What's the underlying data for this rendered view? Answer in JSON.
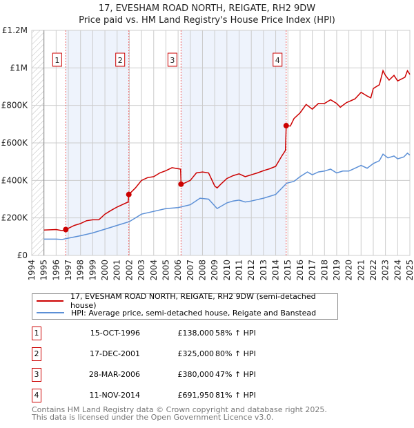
{
  "chart_data": {
    "type": "line",
    "title": "17, EVESHAM ROAD NORTH, REIGATE, RH2 9DW",
    "subtitle": "Price paid vs. HM Land Registry's House Price Index (HPI)",
    "xlim": [
      1994,
      2025
    ],
    "ylim": [
      0,
      1200000
    ],
    "y_ticks": [
      {
        "v": 0,
        "label": "£0"
      },
      {
        "v": 200000,
        "label": "£200K"
      },
      {
        "v": 400000,
        "label": "£400K"
      },
      {
        "v": 600000,
        "label": "£600K"
      },
      {
        "v": 800000,
        "label": "£800K"
      },
      {
        "v": 1000000,
        "label": "£1M"
      },
      {
        "v": 1200000,
        "label": "£1.2M"
      }
    ],
    "x_ticks": [
      "1994",
      "1995",
      "1996",
      "1997",
      "1998",
      "1999",
      "2000",
      "2001",
      "2002",
      "2003",
      "2004",
      "2005",
      "2006",
      "2007",
      "2008",
      "2009",
      "2010",
      "2011",
      "2012",
      "2013",
      "2014",
      "2015",
      "2016",
      "2017",
      "2018",
      "2019",
      "2020",
      "2021",
      "2022",
      "2023",
      "2024",
      "2025"
    ],
    "grid": true,
    "colors": {
      "property": "#cc0000",
      "hpi": "#5b8fd6",
      "shade": "#eef3fc"
    },
    "series": [
      {
        "name": "17, EVESHAM ROAD NORTH, REIGATE, RH2 9DW (semi-detached house)",
        "points": [
          [
            1995,
            135
          ],
          [
            1996,
            138
          ],
          [
            1996.5,
            132
          ],
          [
            1996.79,
            138
          ],
          [
            1997.5,
            160
          ],
          [
            1998,
            170
          ],
          [
            1998.5,
            185
          ],
          [
            1999,
            190
          ],
          [
            1999.5,
            190
          ],
          [
            2000,
            220
          ],
          [
            2000.5,
            240
          ],
          [
            2001,
            258
          ],
          [
            2001.9,
            285
          ],
          [
            2001.96,
            325
          ],
          [
            2002.5,
            360
          ],
          [
            2003,
            400
          ],
          [
            2003.5,
            415
          ],
          [
            2004,
            420
          ],
          [
            2004.5,
            440
          ],
          [
            2005,
            452
          ],
          [
            2005.5,
            468
          ],
          [
            2006.2,
            460
          ],
          [
            2006.24,
            380
          ],
          [
            2006.5,
            385
          ],
          [
            2007,
            400
          ],
          [
            2007.5,
            440
          ],
          [
            2008,
            445
          ],
          [
            2008.5,
            440
          ],
          [
            2009,
            370
          ],
          [
            2009.2,
            360
          ],
          [
            2009.5,
            380
          ],
          [
            2010,
            410
          ],
          [
            2010.5,
            425
          ],
          [
            2011,
            435
          ],
          [
            2011.5,
            420
          ],
          [
            2012,
            430
          ],
          [
            2012.5,
            440
          ],
          [
            2013,
            452
          ],
          [
            2013.5,
            462
          ],
          [
            2014,
            475
          ],
          [
            2014.5,
            530
          ],
          [
            2014.8,
            560
          ],
          [
            2014.86,
            692
          ],
          [
            2015.2,
            690
          ],
          [
            2015.5,
            730
          ],
          [
            2016,
            760
          ],
          [
            2016.5,
            805
          ],
          [
            2017,
            780
          ],
          [
            2017.5,
            810
          ],
          [
            2018,
            810
          ],
          [
            2018.5,
            830
          ],
          [
            2019,
            810
          ],
          [
            2019.3,
            790
          ],
          [
            2019.8,
            815
          ],
          [
            2020,
            820
          ],
          [
            2020.5,
            835
          ],
          [
            2021,
            870
          ],
          [
            2021.5,
            850
          ],
          [
            2021.8,
            840
          ],
          [
            2022,
            890
          ],
          [
            2022.5,
            910
          ],
          [
            2022.8,
            985
          ],
          [
            2023,
            960
          ],
          [
            2023.3,
            935
          ],
          [
            2023.7,
            960
          ],
          [
            2024,
            930
          ],
          [
            2024.3,
            940
          ],
          [
            2024.6,
            950
          ],
          [
            2024.8,
            985
          ],
          [
            2025,
            965
          ]
        ]
      },
      {
        "name": "HPI: Average price, semi-detached house, Reigate and Banstead",
        "points": [
          [
            1995,
            87
          ],
          [
            1996,
            87
          ],
          [
            1996.5,
            85
          ],
          [
            1997,
            92
          ],
          [
            1998,
            105
          ],
          [
            1999,
            120
          ],
          [
            2000,
            140
          ],
          [
            2001,
            160
          ],
          [
            2002,
            180
          ],
          [
            2003,
            220
          ],
          [
            2004,
            235
          ],
          [
            2005,
            250
          ],
          [
            2006,
            255
          ],
          [
            2007,
            270
          ],
          [
            2007.8,
            305
          ],
          [
            2008.5,
            300
          ],
          [
            2009.2,
            250
          ],
          [
            2010,
            280
          ],
          [
            2010.5,
            290
          ],
          [
            2011,
            295
          ],
          [
            2011.5,
            285
          ],
          [
            2012,
            290
          ],
          [
            2013,
            305
          ],
          [
            2014,
            325
          ],
          [
            2014.9,
            385
          ],
          [
            2015.5,
            395
          ],
          [
            2016,
            420
          ],
          [
            2016.6,
            445
          ],
          [
            2017,
            430
          ],
          [
            2017.5,
            445
          ],
          [
            2018,
            450
          ],
          [
            2018.5,
            460
          ],
          [
            2019,
            440
          ],
          [
            2019.5,
            450
          ],
          [
            2020,
            450
          ],
          [
            2020.5,
            465
          ],
          [
            2021,
            480
          ],
          [
            2021.5,
            465
          ],
          [
            2022,
            490
          ],
          [
            2022.5,
            505
          ],
          [
            2022.8,
            540
          ],
          [
            2023.2,
            520
          ],
          [
            2023.7,
            530
          ],
          [
            2024,
            515
          ],
          [
            2024.5,
            525
          ],
          [
            2024.8,
            545
          ],
          [
            2025,
            535
          ]
        ]
      }
    ],
    "y_unit_of_points": "thousands GBP",
    "sales": [
      {
        "n": "1",
        "x": 1996.79,
        "y": 138000,
        "date": "15-OCT-1996",
        "price": "£138,000",
        "hpi": "58% ↑ HPI"
      },
      {
        "n": "2",
        "x": 2001.96,
        "y": 325000,
        "date": "17-DEC-2001",
        "price": "£325,000",
        "hpi": "80% ↑ HPI"
      },
      {
        "n": "3",
        "x": 2006.24,
        "y": 380000,
        "date": "28-MAR-2006",
        "price": "£380,000",
        "hpi": "47% ↑ HPI"
      },
      {
        "n": "4",
        "x": 2014.86,
        "y": 691950,
        "date": "11-NOV-2014",
        "price": "£691,950",
        "hpi": "81% ↑ HPI"
      }
    ],
    "shaded_ranges": [
      [
        1996.79,
        2001.96
      ],
      [
        2006.24,
        2014.86
      ]
    ]
  },
  "footer": {
    "line1": "Contains HM Land Registry data © Crown copyright and database right 2025.",
    "line2": "This data is licensed under the Open Government Licence v3.0."
  }
}
